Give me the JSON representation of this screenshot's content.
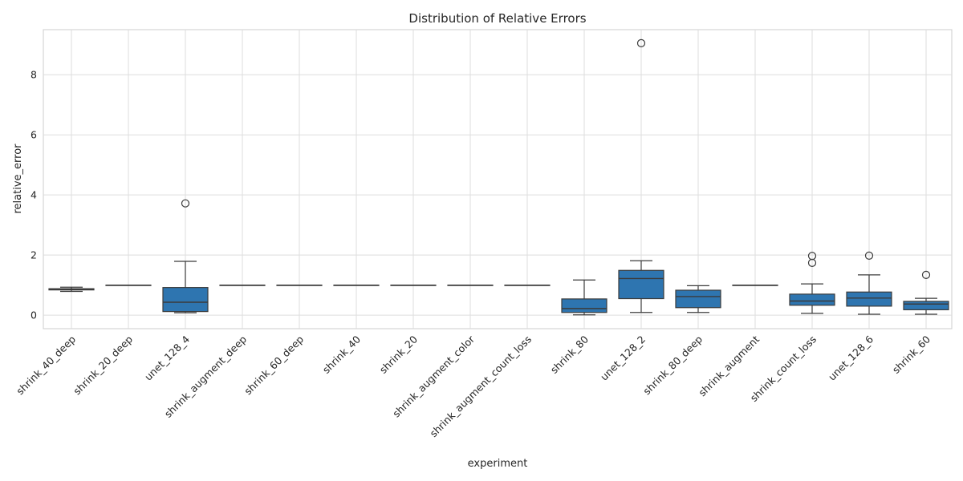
{
  "chart_data": {
    "type": "box",
    "title": "Distribution of Relative Errors",
    "xlabel": "experiment",
    "ylabel": "relative_error",
    "ylim": [
      -0.45,
      9.5
    ],
    "yticks": [
      0,
      2,
      4,
      6,
      8
    ],
    "grid": true,
    "box_color": "#2e75b0",
    "line_color": "#3b3b3b",
    "categories": [
      "shrink_40_deep",
      "shrink_20_deep",
      "unet_128_4",
      "shrink_augment_deep",
      "shrink_60_deep",
      "shrink_40",
      "shrink_20",
      "shrink_augment_color",
      "shrink_augment_count_loss",
      "shrink_80",
      "unet_128_2",
      "shrink_80_deep",
      "shrink_augment",
      "shrink_count_loss",
      "unet_128_6",
      "shrink_60"
    ],
    "boxes": [
      {
        "whislo": 0.79,
        "q1": 0.84,
        "med": 0.86,
        "q3": 0.88,
        "whishi": 0.93,
        "fliers": []
      },
      {
        "whislo": 1.0,
        "q1": 1.0,
        "med": 1.0,
        "q3": 1.0,
        "whishi": 1.0,
        "fliers": []
      },
      {
        "whislo": 0.08,
        "q1": 0.12,
        "med": 0.43,
        "q3": 0.92,
        "whishi": 1.79,
        "fliers": [
          3.72
        ]
      },
      {
        "whislo": 1.0,
        "q1": 1.0,
        "med": 1.0,
        "q3": 1.0,
        "whishi": 1.0,
        "fliers": []
      },
      {
        "whislo": 1.0,
        "q1": 1.0,
        "med": 1.0,
        "q3": 1.0,
        "whishi": 1.0,
        "fliers": []
      },
      {
        "whislo": 1.0,
        "q1": 1.0,
        "med": 1.0,
        "q3": 1.0,
        "whishi": 1.0,
        "fliers": []
      },
      {
        "whislo": 1.0,
        "q1": 1.0,
        "med": 1.0,
        "q3": 1.0,
        "whishi": 1.0,
        "fliers": []
      },
      {
        "whislo": 1.0,
        "q1": 1.0,
        "med": 1.0,
        "q3": 1.0,
        "whishi": 1.0,
        "fliers": []
      },
      {
        "whislo": 1.0,
        "q1": 1.0,
        "med": 1.0,
        "q3": 1.0,
        "whishi": 1.0,
        "fliers": []
      },
      {
        "whislo": 0.01,
        "q1": 0.09,
        "med": 0.22,
        "q3": 0.54,
        "whishi": 1.17,
        "fliers": []
      },
      {
        "whislo": 0.09,
        "q1": 0.55,
        "med": 1.22,
        "q3": 1.49,
        "whishi": 1.81,
        "fliers": [
          9.05
        ]
      },
      {
        "whislo": 0.09,
        "q1": 0.25,
        "med": 0.62,
        "q3": 0.83,
        "whishi": 0.98,
        "fliers": []
      },
      {
        "whislo": 1.0,
        "q1": 1.0,
        "med": 1.0,
        "q3": 1.0,
        "whishi": 1.0,
        "fliers": []
      },
      {
        "whislo": 0.06,
        "q1": 0.33,
        "med": 0.47,
        "q3": 0.7,
        "whishi": 1.04,
        "fliers": [
          1.74,
          1.97
        ]
      },
      {
        "whislo": 0.03,
        "q1": 0.3,
        "med": 0.57,
        "q3": 0.77,
        "whishi": 1.34,
        "fliers": [
          1.98
        ]
      },
      {
        "whislo": 0.03,
        "q1": 0.18,
        "med": 0.37,
        "q3": 0.46,
        "whishi": 0.56,
        "fliers": [
          1.34
        ]
      }
    ]
  }
}
